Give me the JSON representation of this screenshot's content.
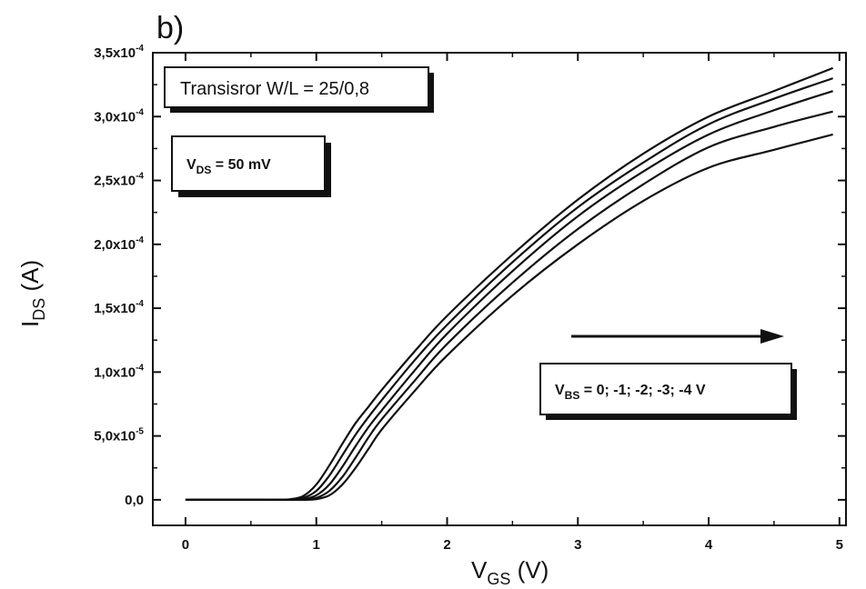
{
  "chart_data": {
    "type": "line",
    "panel_label": "b)",
    "xlabel": {
      "main": "V",
      "sub": "GS",
      "rest": " (V)"
    },
    "ylabel": {
      "main": "I",
      "sub": "DS",
      "rest": " (A)"
    },
    "xlim": [
      -0.25,
      5.05
    ],
    "ylim": [
      -2e-05,
      0.00035
    ],
    "x_ticks": [
      0,
      1,
      2,
      3,
      4,
      5
    ],
    "x_tick_labels": [
      "0",
      "1",
      "2",
      "3",
      "4",
      "5"
    ],
    "y_ticks": [
      0,
      5e-05,
      0.0001,
      0.00015,
      0.0002,
      0.00025,
      0.0003,
      0.00035
    ],
    "y_tick_labels": [
      {
        "mant": "0,0",
        "exp": ""
      },
      {
        "mant": "5,0x10",
        "exp": "-5"
      },
      {
        "mant": "1,0x10",
        "exp": "-4"
      },
      {
        "mant": "1,5x10",
        "exp": "-4"
      },
      {
        "mant": "2,0x10",
        "exp": "-4"
      },
      {
        "mant": "2,5x10",
        "exp": "-4"
      },
      {
        "mant": "3,0x10",
        "exp": "-4"
      },
      {
        "mant": "3,5x10",
        "exp": "-4"
      }
    ],
    "x": [
      0,
      0.5,
      0.7,
      0.8,
      0.9,
      1.0,
      1.1,
      1.2,
      1.3,
      1.4,
      1.5,
      1.75,
      2.0,
      2.5,
      3.0,
      3.5,
      4.0,
      4.5,
      4.95
    ],
    "series": [
      {
        "values": [
          0,
          0,
          2e-08,
          5e-07,
          3e-06,
          1.2e-05,
          2.7e-05,
          4.4e-05,
          6e-05,
          7.3e-05,
          8.6e-05,
          0.000116,
          0.000144,
          0.000192,
          0.000235,
          0.000271,
          0.0003,
          0.00032,
          0.000338
        ]
      },
      {
        "values": [
          0,
          0,
          0,
          2e-07,
          1.5e-06,
          7e-06,
          1.9e-05,
          3.5e-05,
          5.1e-05,
          6.5e-05,
          7.8e-05,
          0.000109,
          0.000137,
          0.000186,
          0.000229,
          0.000264,
          0.000294,
          0.000314,
          0.00033
        ]
      },
      {
        "values": [
          0,
          0,
          0,
          0,
          6e-07,
          3.5e-06,
          1.2e-05,
          2.6e-05,
          4.2e-05,
          5.7e-05,
          7e-05,
          0.000101,
          0.00013,
          0.000179,
          0.000222,
          0.000257,
          0.000286,
          0.000305,
          0.00032
        ]
      },
      {
        "values": [
          0,
          0,
          0,
          0,
          2e-07,
          1.5e-06,
          7e-06,
          1.8e-05,
          3.3e-05,
          4.9e-05,
          6.3e-05,
          9.3e-05,
          0.000122,
          0.00017,
          0.000212,
          0.000247,
          0.000276,
          0.000292,
          0.000304
        ]
      },
      {
        "values": [
          0,
          0,
          0,
          0,
          0,
          5e-07,
          3.5e-06,
          1.2e-05,
          2.5e-05,
          4e-05,
          5.5e-05,
          8.5e-05,
          0.000113,
          0.00016,
          0.0002,
          0.000234,
          0.00026,
          0.000274,
          0.000286
        ]
      }
    ],
    "annotations": {
      "box1": "Transisror W/L = 25/0,8",
      "box2": {
        "main": "V",
        "sub": "DS",
        "rest": " = 50 mV"
      },
      "box3": {
        "main": "V",
        "sub": "BS",
        "rest": " = 0; -1; -2; -3; -4 V"
      }
    },
    "colors": {
      "line": "#111111",
      "box_shadow": "#111111"
    }
  }
}
